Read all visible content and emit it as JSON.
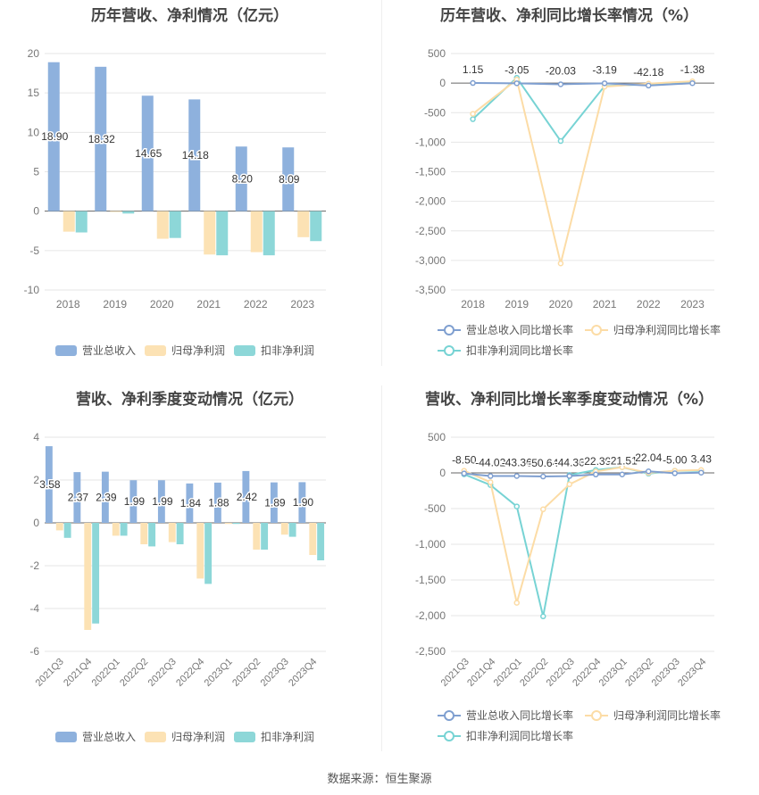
{
  "source": "数据来源：恒生聚源",
  "chart_data": [
    {
      "type": "bar",
      "title": "历年营收、净利情况（亿元）",
      "categories": [
        "2018",
        "2019",
        "2020",
        "2021",
        "2022",
        "2023"
      ],
      "ylim": [
        -10,
        20
      ],
      "yticks": [
        -10,
        -5,
        0,
        5,
        10,
        15,
        20
      ],
      "series": [
        {
          "name": "营业总收入",
          "color": "#8eb1dd",
          "values": [
            18.9,
            18.32,
            14.65,
            14.18,
            8.2,
            8.09
          ],
          "labels": [
            "18.90",
            "18.32",
            "14.65",
            "14.18",
            "8.20",
            "8.09"
          ]
        },
        {
          "name": "归母净利润",
          "color": "#fce2b4",
          "values": [
            -2.6,
            -0.1,
            -3.5,
            -5.5,
            -5.2,
            -3.3
          ]
        },
        {
          "name": "扣非净利润",
          "color": "#8dd7d8",
          "values": [
            -2.7,
            -0.3,
            -3.4,
            -5.6,
            -5.6,
            -3.8
          ]
        }
      ],
      "grid": true,
      "legend": "bottom"
    },
    {
      "type": "line",
      "title": "历年营收、净利同比增长率情况（%）",
      "categories": [
        "2018",
        "2019",
        "2020",
        "2021",
        "2022",
        "2023"
      ],
      "ylim": [
        -3500,
        500
      ],
      "yticks": [
        -3500,
        -3000,
        -2500,
        -2000,
        -1500,
        -1000,
        -500,
        0,
        500
      ],
      "ytick_labels": [
        "-3,500",
        "-3,000",
        "-2,500",
        "-2,000",
        "-1,500",
        "-1,000",
        "-500",
        "0",
        "500"
      ],
      "series": [
        {
          "name": "营业总收入同比增长率",
          "color": "#7f9fd0",
          "values": [
            1.15,
            -3.05,
            -20.03,
            -3.19,
            -42.18,
            -1.38
          ],
          "labels": [
            "1.15",
            "-3.05",
            "-20.03",
            "-3.19",
            "-42.18",
            "-1.38"
          ]
        },
        {
          "name": "归母净利润同比增长率",
          "color": "#fcdca6",
          "values": [
            -520,
            60,
            -3050,
            -60,
            -10,
            30
          ]
        },
        {
          "name": "扣非净利润同比增长率",
          "color": "#77d3d4",
          "values": [
            -610,
            90,
            -980,
            -50,
            -20,
            20
          ]
        }
      ],
      "grid": true,
      "legend": "bottom"
    },
    {
      "type": "bar",
      "title": "营收、净利季度变动情况（亿元）",
      "categories": [
        "2021Q3",
        "2021Q4",
        "2022Q1",
        "2022Q2",
        "2022Q3",
        "2022Q4",
        "2023Q1",
        "2023Q2",
        "2023Q3",
        "2023Q4"
      ],
      "ylim": [
        -6,
        4
      ],
      "yticks": [
        -6,
        -4,
        -2,
        0,
        2,
        4
      ],
      "series": [
        {
          "name": "营业总收入",
          "color": "#8eb1dd",
          "values": [
            3.58,
            2.37,
            2.39,
            1.99,
            1.99,
            1.84,
            1.88,
            2.42,
            1.89,
            1.9
          ],
          "labels": [
            "3.58",
            "2.37",
            "2.39",
            "1.99",
            "1.99",
            "1.84",
            "1.88",
            "2.42",
            "1.89",
            "1.90"
          ]
        },
        {
          "name": "归母净利润",
          "color": "#fce2b4",
          "values": [
            -0.35,
            -5.0,
            -0.6,
            -1.0,
            -0.9,
            -2.6,
            -0.05,
            -1.25,
            -0.55,
            -1.5
          ]
        },
        {
          "name": "扣非净利润",
          "color": "#8dd7d8",
          "values": [
            -0.7,
            -4.7,
            -0.6,
            -1.1,
            -1.0,
            -2.85,
            -0.05,
            -1.25,
            -0.65,
            -1.75
          ]
        }
      ],
      "grid": true,
      "legend": "bottom"
    },
    {
      "type": "line",
      "title": "营收、净利同比增长率季度变动情况（%）",
      "categories": [
        "2021Q3",
        "2021Q4",
        "2022Q1",
        "2022Q2",
        "2022Q3",
        "2022Q4",
        "2023Q1",
        "2023Q2",
        "2023Q3",
        "2023Q4"
      ],
      "ylim": [
        -2500,
        500
      ],
      "yticks": [
        -2500,
        -2000,
        -1500,
        -1000,
        -500,
        0,
        500
      ],
      "ytick_labels": [
        "-2,500",
        "-2,000",
        "-1,500",
        "-1,000",
        "-500",
        "0",
        "500"
      ],
      "series": [
        {
          "name": "营业总收入同比增长率",
          "color": "#7f9fd0",
          "values": [
            -8.5,
            -44.02,
            -43.36,
            -50.64,
            -44.36,
            -22.39,
            -21.51,
            22.04,
            -5.0,
            3.43
          ],
          "labels": [
            "-8.50",
            "-44.02",
            "-43.36",
            "-50.64",
            "-44.36",
            "-22.39",
            "-21.51",
            "22.04",
            "-5.00",
            "3.43"
          ]
        },
        {
          "name": "归母净利润同比增长率",
          "color": "#fcdca6",
          "values": [
            30,
            -130,
            -1820,
            -510,
            -160,
            20,
            80,
            0,
            30,
            40
          ]
        },
        {
          "name": "扣非净利润同比增长率",
          "color": "#77d3d4",
          "values": [
            -20,
            -170,
            -470,
            -2010,
            -30,
            40,
            80,
            -10,
            30,
            30
          ]
        }
      ],
      "grid": true,
      "legend": "bottom"
    }
  ]
}
